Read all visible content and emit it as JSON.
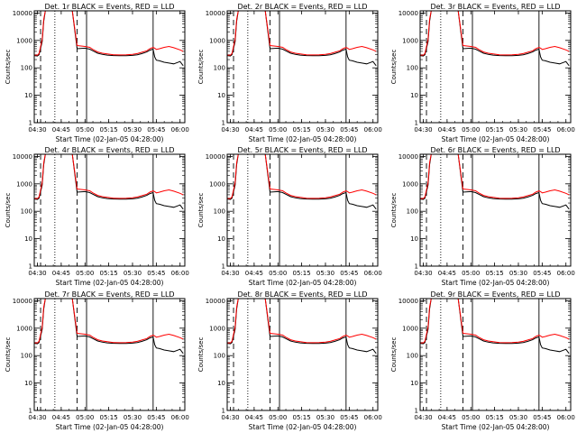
{
  "figure": {
    "panel_titles": [
      "Det. 1r BLACK = Events, RED = LLD",
      "Det. 2r BLACK = Events, RED = LLD",
      "Det. 3r BLACK = Events, RED = LLD",
      "Det. 4r BLACK = Events, RED = LLD",
      "Det. 5r BLACK = Events, RED = LLD",
      "Det. 6r BLACK = Events, RED = LLD",
      "Det. 7r BLACK = Events, RED = LLD",
      "Det. 8r BLACK = Events, RED = LLD",
      "Det. 9r BLACK = Events, RED = LLD"
    ],
    "xlabel": "Start Time (02-Jan-05 04:28:00)",
    "ylabel": "Counts/sec",
    "series_colors": {
      "events": "#000000",
      "lld": "#ff0000"
    }
  },
  "chart_data": {
    "type": "line",
    "layout": "3x3 grid of panels",
    "x_scale": "time",
    "x_range": [
      "04:28",
      "06:03"
    ],
    "x_ticks": [
      "04:30",
      "04:45",
      "05:00",
      "05:15",
      "05:30",
      "05:45",
      "06:00"
    ],
    "y_scale": "log",
    "y_range": [
      1,
      12000
    ],
    "y_ticks": [
      "1",
      "10",
      "100",
      "1000",
      "10000"
    ],
    "grid": false,
    "legend": "in panel titles",
    "series": [
      {
        "name": "Events",
        "color": "#000000",
        "x": [
          "04:28",
          "04:30",
          "04:31",
          "04:33",
          "04:34",
          "04:35",
          "04:45",
          "04:52",
          "04:55",
          "05:00",
          "05:03",
          "05:05",
          "05:08",
          "05:11",
          "05:14",
          "05:18",
          "05:22",
          "05:26",
          "05:30",
          "05:33",
          "05:36",
          "05:39",
          "05:41",
          "05:43",
          "05:44",
          "05:45",
          "05:47",
          "05:50",
          "05:53",
          "05:56",
          "06:00",
          "06:02"
        ],
        "values": [
          280,
          270,
          300,
          900,
          5000,
          12000,
          12000,
          12000,
          500,
          520,
          480,
          420,
          340,
          310,
          290,
          280,
          275,
          278,
          285,
          300,
          330,
          380,
          440,
          480,
          250,
          190,
          180,
          160,
          150,
          140,
          170,
          120
        ]
      },
      {
        "name": "LLD",
        "color": "#ff0000",
        "x": [
          "04:28",
          "04:30",
          "04:31",
          "04:33",
          "04:34",
          "04:35",
          "04:45",
          "04:52",
          "04:55",
          "05:00",
          "05:03",
          "05:05",
          "05:08",
          "05:11",
          "05:14",
          "05:18",
          "05:22",
          "05:26",
          "05:30",
          "05:33",
          "05:36",
          "05:39",
          "05:41",
          "05:43",
          "05:44",
          "05:45",
          "05:47",
          "05:50",
          "05:53",
          "05:56",
          "06:00",
          "06:02"
        ],
        "values": [
          290,
          290,
          330,
          1100,
          6000,
          12000,
          12000,
          12000,
          650,
          600,
          560,
          470,
          380,
          340,
          320,
          300,
          295,
          298,
          310,
          330,
          370,
          420,
          500,
          560,
          520,
          470,
          500,
          560,
          600,
          540,
          450,
          400
        ]
      }
    ],
    "annotations": [
      {
        "x": "04:32",
        "style": "dashed",
        "label": ""
      },
      {
        "x": "04:41",
        "style": "dotted",
        "label": ""
      },
      {
        "x": "04:55",
        "style": "dashed",
        "label": ""
      },
      {
        "x": "05:01",
        "style": "solid",
        "label": ""
      },
      {
        "x": "05:43",
        "style": "solid",
        "label": ""
      }
    ]
  }
}
